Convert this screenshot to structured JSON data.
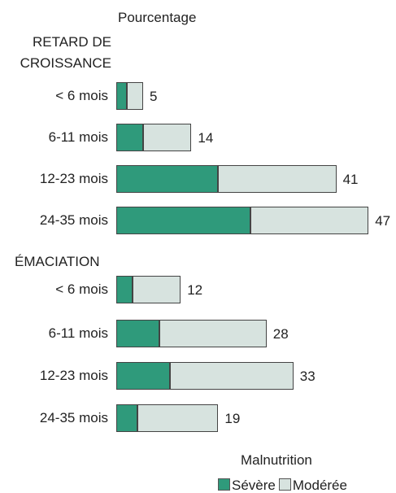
{
  "chart_data": {
    "type": "bar",
    "orientation": "horizontal",
    "stacked": true,
    "axis_label": "Pourcentage",
    "legend_title": "Malnutrition",
    "series": [
      {
        "name": "Sévère",
        "color": "#2f9a7b"
      },
      {
        "name": "Modérée",
        "color": "#d7e3df"
      }
    ],
    "groups": [
      {
        "name": "RETARD DE CROISSANCE",
        "categories": [
          "< 6 mois",
          "6-11 mois",
          "12-23 mois",
          "24-35 mois"
        ],
        "values": [
          [
            2,
            3
          ],
          [
            5,
            9
          ],
          [
            19,
            22
          ],
          [
            25,
            22
          ]
        ],
        "totals": [
          5,
          14,
          41,
          47
        ]
      },
      {
        "name": "ÉMACIATION",
        "categories": [
          "< 6 mois",
          "6-11 mois",
          "12-23 mois",
          "24-35 mois"
        ],
        "values": [
          [
            3,
            9
          ],
          [
            8,
            20
          ],
          [
            10,
            23
          ],
          [
            4,
            15
          ]
        ],
        "totals": [
          12,
          28,
          33,
          19
        ]
      }
    ]
  }
}
